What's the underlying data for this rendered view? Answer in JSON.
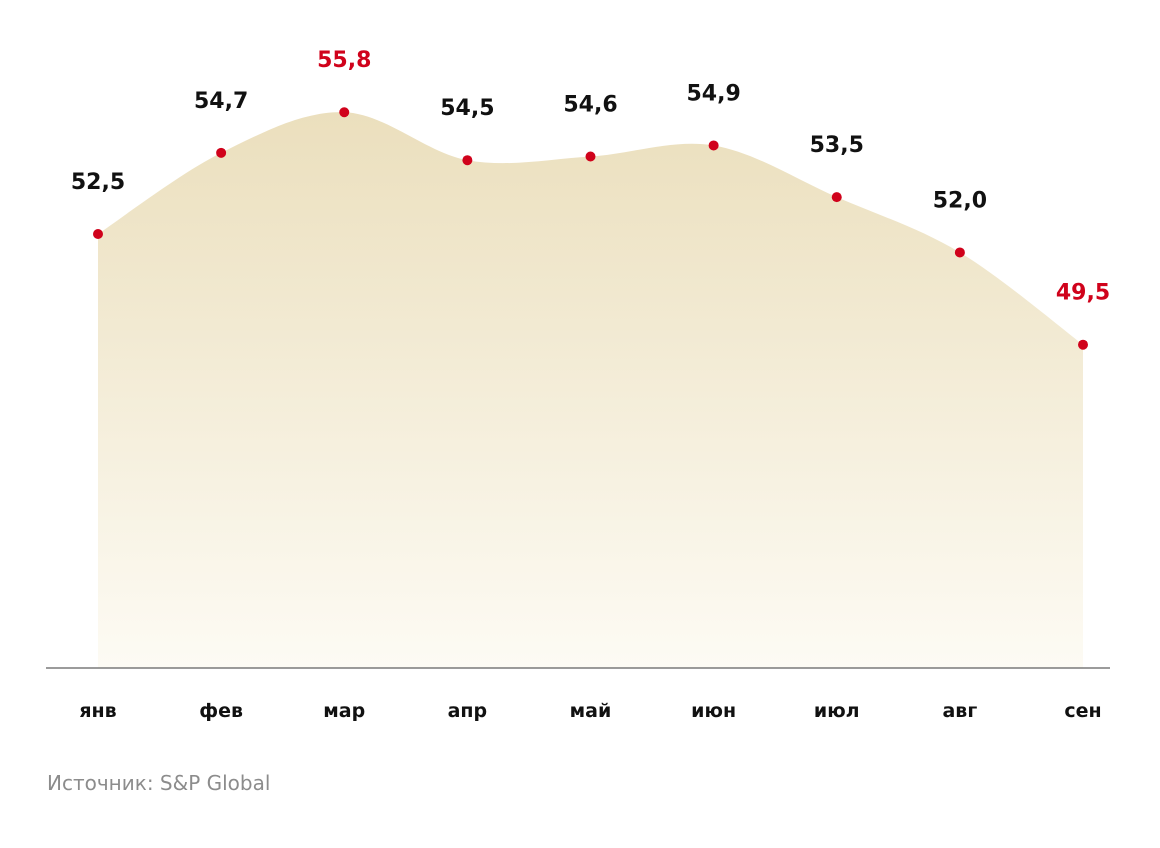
{
  "chart_data": {
    "type": "area",
    "categories": [
      "янв",
      "фев",
      "мар",
      "апр",
      "май",
      "июн",
      "июл",
      "авг",
      "сен"
    ],
    "series": [
      {
        "values": [
          52.5,
          54.7,
          55.8,
          54.5,
          54.6,
          54.9,
          53.5,
          52.0,
          49.5
        ]
      }
    ],
    "value_labels": [
      "52,5",
      "54,7",
      "55,8",
      "54,5",
      "54,6",
      "54,9",
      "53,5",
      "52,0",
      "49,5"
    ],
    "highlighted": [
      false,
      false,
      true,
      false,
      false,
      false,
      false,
      false,
      true
    ],
    "grid": false,
    "legend": "none"
  },
  "colors": {
    "area_top": "#ebdfbd",
    "area_bottom": "#fdfbf4",
    "marker": "#d0021b",
    "highlight_label": "#d0021b",
    "label": "#111111",
    "axis": "#7a7a7a",
    "source": "#8c8c8c"
  },
  "source": "Источник: S&P Global"
}
